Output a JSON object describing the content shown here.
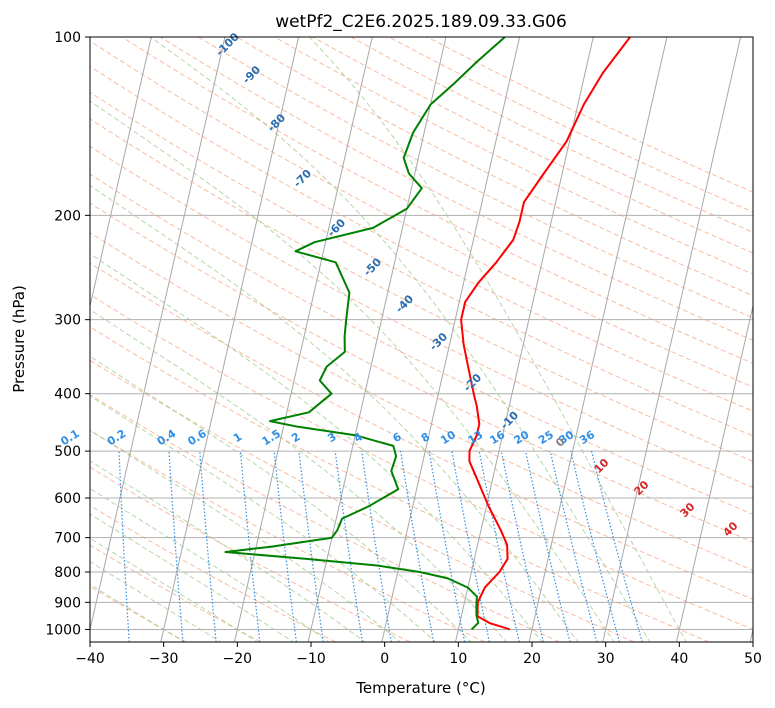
{
  "chart_data": {
    "type": "line",
    "subtype": "skew-T log-P diagram",
    "title": "wetPf2_C2E6.2025.189.09.33.G06",
    "xlabel": "Temperature (°C)",
    "ylabel": "Pressure (hPa)",
    "xlim": [
      -40,
      50
    ],
    "ylim": [
      1050,
      100
    ],
    "y_scale": "log",
    "grid": true,
    "x_ticks": [
      -40,
      -30,
      -20,
      -10,
      0,
      10,
      20,
      30,
      40,
      50
    ],
    "y_ticks": [
      100,
      200,
      300,
      400,
      500,
      600,
      700,
      800,
      900,
      1000
    ],
    "series": [
      {
        "role": "temperature",
        "color": "#ff0000",
        "points": [
          [
            1000,
            17.0
          ],
          [
            975,
            14.0
          ],
          [
            950,
            12.2
          ],
          [
            900,
            11.8
          ],
          [
            850,
            12.3
          ],
          [
            800,
            13.8
          ],
          [
            760,
            14.5
          ],
          [
            720,
            14.0
          ],
          [
            680,
            12.7
          ],
          [
            620,
            10.3
          ],
          [
            560,
            8.0
          ],
          [
            520,
            6.3
          ],
          [
            500,
            6.0
          ],
          [
            470,
            6.5
          ],
          [
            450,
            6.5
          ],
          [
            420,
            5.6
          ],
          [
            400,
            4.8
          ],
          [
            360,
            3.2
          ],
          [
            330,
            1.9
          ],
          [
            300,
            0.8
          ],
          [
            280,
            0.8
          ],
          [
            260,
            2.0
          ],
          [
            240,
            3.8
          ],
          [
            220,
            5.4
          ],
          [
            205,
            5.7
          ],
          [
            190,
            5.7
          ],
          [
            170,
            7.5
          ],
          [
            150,
            9.6
          ],
          [
            130,
            10.8
          ],
          [
            115,
            12.4
          ],
          [
            100,
            15.0
          ]
        ]
      },
      {
        "role": "dewpoint",
        "color": "#008000",
        "points": [
          [
            1000,
            11.8
          ],
          [
            975,
            12.5
          ],
          [
            945,
            12.0
          ],
          [
            910,
            11.7
          ],
          [
            880,
            11.5
          ],
          [
            850,
            10.0
          ],
          [
            820,
            7.0
          ],
          [
            800,
            3.0
          ],
          [
            780,
            -3.0
          ],
          [
            760,
            -13.0
          ],
          [
            740,
            -24.0
          ],
          [
            725,
            -18.0
          ],
          [
            700,
            -10.0
          ],
          [
            680,
            -9.5
          ],
          [
            650,
            -9.2
          ],
          [
            620,
            -6.0
          ],
          [
            580,
            -2.5
          ],
          [
            540,
            -4.0
          ],
          [
            510,
            -3.8
          ],
          [
            490,
            -4.5
          ],
          [
            470,
            -10.0
          ],
          [
            455,
            -18.0
          ],
          [
            445,
            -22.0
          ],
          [
            430,
            -17.0
          ],
          [
            400,
            -14.5
          ],
          [
            380,
            -16.5
          ],
          [
            360,
            -16.0
          ],
          [
            340,
            -14.0
          ],
          [
            320,
            -14.5
          ],
          [
            300,
            -14.8
          ],
          [
            270,
            -15.2
          ],
          [
            240,
            -18.0
          ],
          [
            230,
            -23.8
          ],
          [
            222,
            -21.5
          ],
          [
            210,
            -14.0
          ],
          [
            195,
            -10.0
          ],
          [
            180,
            -8.6
          ],
          [
            170,
            -10.8
          ],
          [
            160,
            -12.0
          ],
          [
            145,
            -11.5
          ],
          [
            130,
            -10.0
          ],
          [
            120,
            -7.5
          ],
          [
            110,
            -5.0
          ],
          [
            100,
            -2.0
          ]
        ]
      }
    ],
    "mixing_ratio_labels": [
      "0.1",
      "0.2",
      "0.4",
      "0.6",
      "1",
      "1.5",
      "2",
      "3",
      "4",
      "6",
      "8",
      "10",
      "13",
      "16",
      "20",
      "25",
      "30",
      "36"
    ],
    "isotherm_labels": [
      "-100",
      "-90",
      "-80",
      "-70",
      "-60",
      "-50",
      "-40",
      "-30",
      "-20",
      "-10",
      "0",
      "10",
      "20",
      "30",
      "40"
    ]
  }
}
